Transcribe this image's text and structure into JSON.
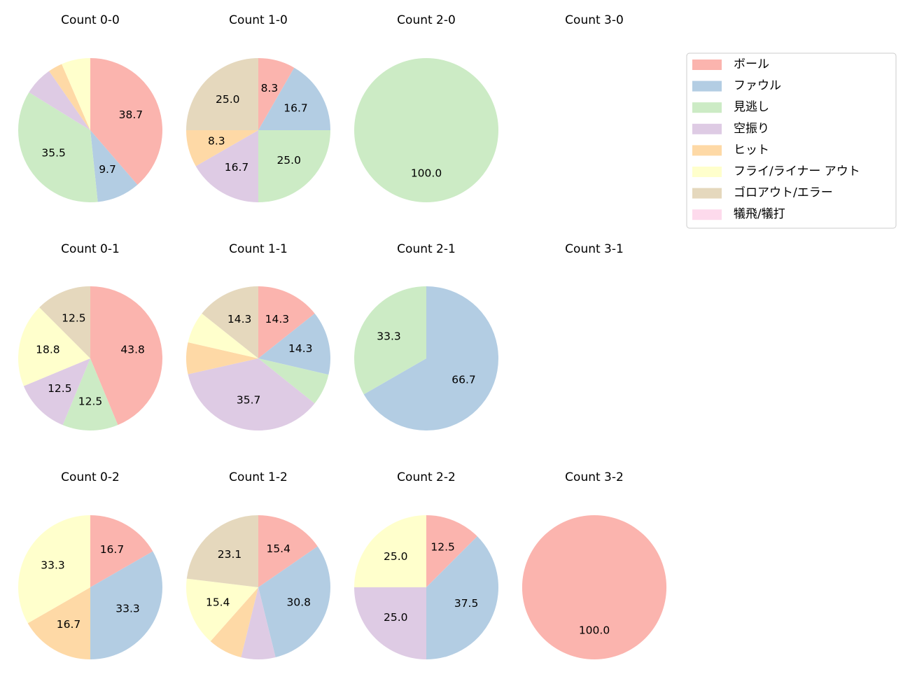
{
  "legend": {
    "categories": [
      "ボール",
      "ファウル",
      "見逃し",
      "空振り",
      "ヒット",
      "フライ/ライナー アウト",
      "ゴロアウト/エラー",
      "犠飛/犠打"
    ],
    "colors": [
      "#fbb4ae",
      "#b3cde3",
      "#ccebc5",
      "#decbe4",
      "#fed9a6",
      "#ffffcc",
      "#e5d8bd",
      "#fddaec"
    ]
  },
  "chart_data": [
    {
      "type": "pie",
      "title": "Count 0-0",
      "values": [
        38.7,
        9.7,
        35.5,
        6.5,
        3.2,
        6.5,
        0,
        0
      ],
      "value_labels": [
        "38.7",
        "9.7",
        "35.5",
        null,
        null,
        null,
        null,
        null
      ]
    },
    {
      "type": "pie",
      "title": "Count 1-0",
      "values": [
        8.3,
        16.7,
        25.0,
        16.7,
        8.3,
        0,
        25.0,
        0
      ],
      "value_labels": [
        "8.3",
        "16.7",
        "25.0",
        "16.7",
        "8.3",
        null,
        "25.0",
        null
      ]
    },
    {
      "type": "pie",
      "title": "Count 2-0",
      "values": [
        0,
        0,
        100,
        0,
        0,
        0,
        0,
        0
      ],
      "value_labels": [
        null,
        null,
        "100.0",
        null,
        null,
        null,
        null,
        null
      ]
    },
    {
      "type": "pie",
      "title": "Count 3-0",
      "values": [],
      "value_labels": []
    },
    {
      "type": "pie",
      "title": "Count 0-1",
      "values": [
        43.8,
        0,
        12.5,
        12.5,
        0,
        18.8,
        12.5,
        0
      ],
      "value_labels": [
        "43.8",
        null,
        "12.5",
        "12.5",
        null,
        "18.8",
        "12.5",
        null
      ]
    },
    {
      "type": "pie",
      "title": "Count 1-1",
      "values": [
        14.3,
        14.3,
        7.1,
        35.7,
        7.1,
        7.1,
        14.3,
        0
      ],
      "value_labels": [
        "14.3",
        "14.3",
        null,
        "35.7",
        null,
        null,
        "14.3",
        null
      ]
    },
    {
      "type": "pie",
      "title": "Count 2-1",
      "values": [
        0,
        66.7,
        33.3,
        0,
        0,
        0,
        0,
        0
      ],
      "value_labels": [
        null,
        "66.7",
        "33.3",
        null,
        null,
        null,
        null,
        null
      ]
    },
    {
      "type": "pie",
      "title": "Count 3-1",
      "values": [],
      "value_labels": []
    },
    {
      "type": "pie",
      "title": "Count 0-2",
      "values": [
        16.7,
        33.3,
        0,
        0,
        16.7,
        33.3,
        0,
        0
      ],
      "value_labels": [
        "16.7",
        "33.3",
        null,
        null,
        "16.7",
        "33.3",
        null,
        null
      ]
    },
    {
      "type": "pie",
      "title": "Count 1-2",
      "values": [
        15.4,
        30.8,
        0,
        7.7,
        7.7,
        15.4,
        23.1,
        0
      ],
      "value_labels": [
        "15.4",
        "30.8",
        null,
        null,
        null,
        "15.4",
        "23.1",
        null
      ]
    },
    {
      "type": "pie",
      "title": "Count 2-2",
      "values": [
        12.5,
        37.5,
        0,
        25.0,
        0,
        25.0,
        0,
        0
      ],
      "value_labels": [
        "12.5",
        "37.5",
        null,
        "25.0",
        null,
        "25.0",
        null,
        null
      ]
    },
    {
      "type": "pie",
      "title": "Count 3-2",
      "values": [
        100,
        0,
        0,
        0,
        0,
        0,
        0,
        0
      ],
      "value_labels": [
        "100.0",
        null,
        null,
        null,
        null,
        null,
        null,
        null
      ]
    }
  ]
}
